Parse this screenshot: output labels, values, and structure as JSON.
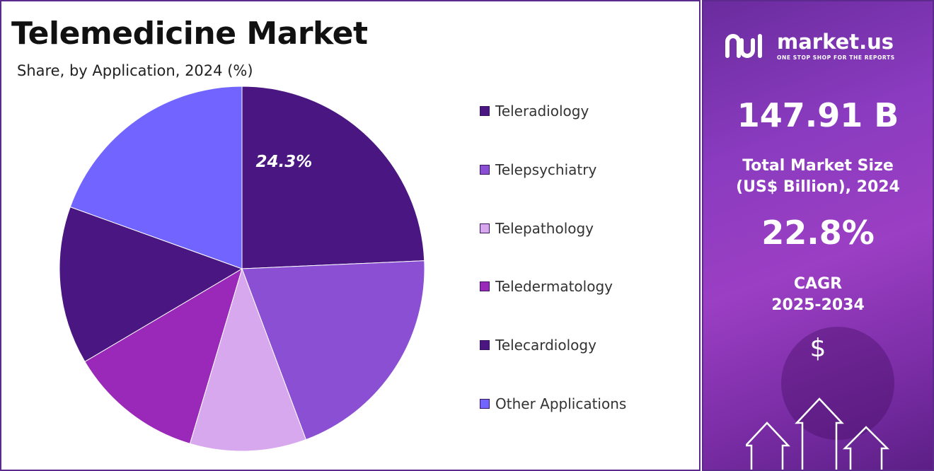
{
  "chart_data": {
    "type": "pie",
    "title": "Telemedicine Market",
    "subtitle": "Share, by Application, 2024 (%)",
    "categories": [
      "Teleradiology",
      "Telepsychiatry",
      "Telepathology",
      "Teledermatology",
      "Telecardiology",
      "Other Applications"
    ],
    "values": [
      24.3,
      20.0,
      10.3,
      11.9,
      14.0,
      19.5
    ],
    "data_labels": [
      "24.3%",
      "",
      "",
      "",
      "",
      ""
    ],
    "colors": [
      "#4a1682",
      "#8b4fd3",
      "#d8a8ee",
      "#9a28b8",
      "#4a1682",
      "#7265ff"
    ],
    "legend_position": "right"
  },
  "info_panel": {
    "brand_name": "market.us",
    "brand_tagline": "ONE STOP SHOP FOR THE REPORTS",
    "market_size": "147.91 B",
    "market_size_label_line1": "Total Market Size",
    "market_size_label_line2": "(US$ Billion), 2024",
    "cagr": "22.8%",
    "cagr_label_line1": "CAGR",
    "cagr_label_line2": "2025-2034",
    "currency_icon": "dollar-icon",
    "currency_symbol": "$"
  }
}
